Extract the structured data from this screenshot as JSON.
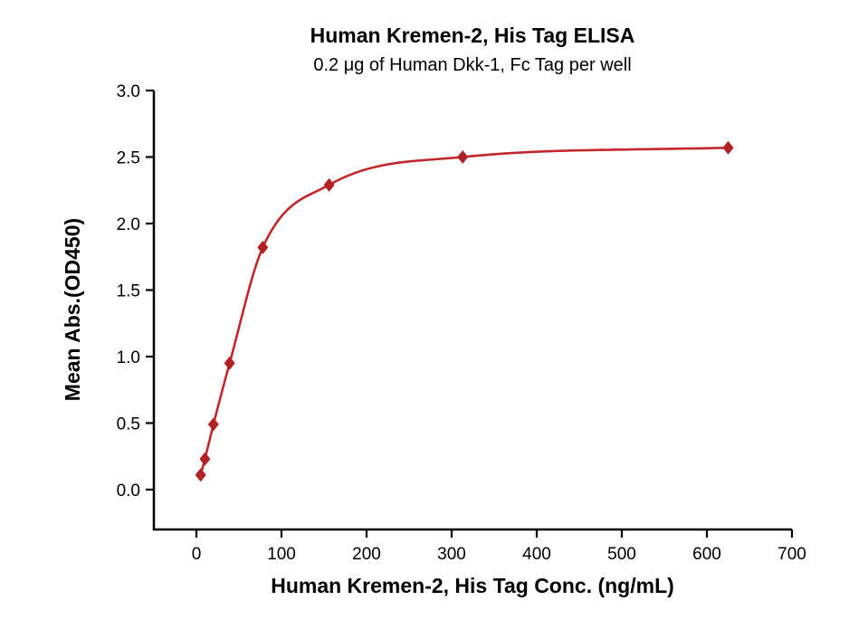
{
  "chart_data": {
    "type": "scatter",
    "title": "Human Kremen-2, His Tag ELISA",
    "subtitle": "0.2 μg of Human Dkk-1, Fc Tag per well",
    "xlabel": "Human Kremen-2, His Tag Conc. (ng/mL)",
    "ylabel": "Mean Abs.(OD450)",
    "x": [
      5,
      10,
      20,
      39,
      78,
      156,
      313,
      625
    ],
    "y": [
      0.11,
      0.23,
      0.49,
      0.95,
      1.82,
      2.29,
      2.5,
      2.57
    ],
    "xlim": [
      -50,
      700
    ],
    "ylim": [
      -0.3,
      3.0
    ],
    "xticks": [
      0,
      100,
      200,
      300,
      400,
      500,
      600,
      700
    ],
    "yticks": [
      0.0,
      0.5,
      1.0,
      1.5,
      2.0,
      2.5,
      3.0
    ],
    "curve_color": "#c1272d",
    "marker_color": "#b02025",
    "axis_color": "#000000",
    "grid": false,
    "legend": null,
    "marker_shape": "diamond",
    "fit": "4PL sigmoidal curve through points"
  }
}
